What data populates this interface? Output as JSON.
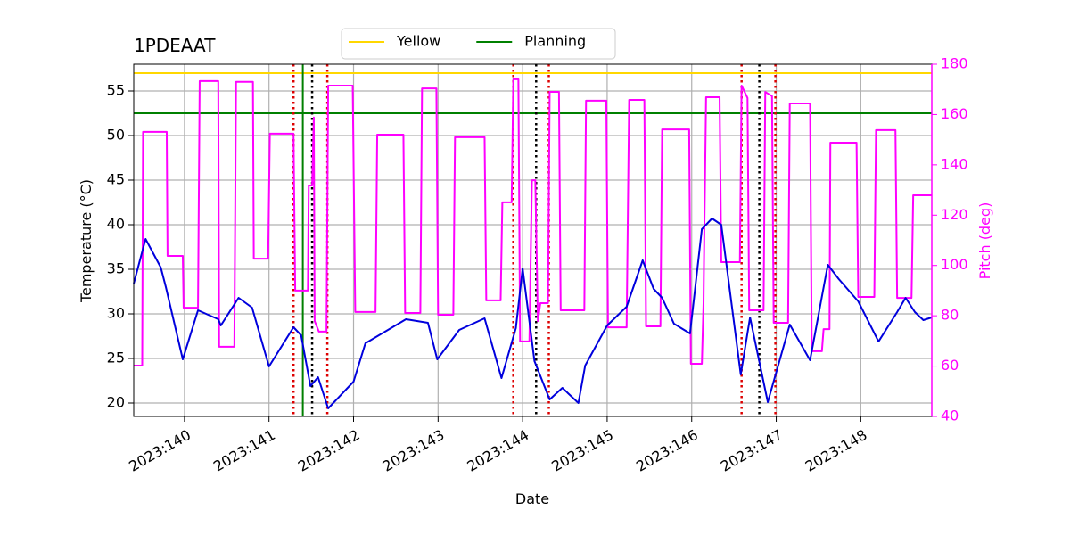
{
  "chart_data": {
    "type": "line",
    "title": "1PDEAAT",
    "xlabel": "Date",
    "ylabel": "Temperature (°C)",
    "y2label": "Pitch (deg)",
    "y2color": "#ff00ff",
    "xlim": [
      139.4,
      148.84
    ],
    "xticks": [
      {
        "value": 140,
        "label": "2023:140"
      },
      {
        "value": 141,
        "label": "2023:141"
      },
      {
        "value": 142,
        "label": "2023:142"
      },
      {
        "value": 143,
        "label": "2023:143"
      },
      {
        "value": 144,
        "label": "2023:144"
      },
      {
        "value": 145,
        "label": "2023:145"
      },
      {
        "value": 146,
        "label": "2023:146"
      },
      {
        "value": 147,
        "label": "2023:147"
      },
      {
        "value": 148,
        "label": "2023:148"
      }
    ],
    "ylim": [
      18.5,
      58
    ],
    "yticks": [
      20,
      25,
      30,
      35,
      40,
      45,
      50,
      55
    ],
    "y2lim": [
      40,
      180
    ],
    "y2ticks": [
      40,
      60,
      80,
      100,
      120,
      140,
      160,
      180
    ],
    "grid": true,
    "legend": "upper center",
    "hlines": [
      {
        "name": "Yellow",
        "color": "#ffd700",
        "value": 57
      },
      {
        "name": "Planning",
        "color": "#008000",
        "value": 52.5
      }
    ],
    "vlines": [
      {
        "color": "#008000",
        "style": "solid",
        "x": [
          141.4
        ]
      },
      {
        "color": "#dd0000",
        "style": "dotted",
        "x": [
          141.29,
          141.69,
          143.89,
          144.31,
          146.59,
          146.99
        ]
      },
      {
        "color": "#000000",
        "style": "dotted",
        "x": [
          141.51,
          144.16,
          146.8
        ]
      }
    ],
    "series": [
      {
        "color": "#0000dd",
        "axis": "y",
        "x": [
          139.4,
          139.54,
          139.72,
          139.78,
          139.98,
          140.16,
          140.4,
          140.43,
          140.64,
          140.8,
          141.0,
          141.29,
          141.38,
          141.49,
          141.58,
          141.7,
          142.0,
          142.14,
          142.62,
          142.88,
          142.99,
          143.25,
          143.55,
          143.75,
          143.92,
          144.0,
          144.14,
          144.32,
          144.47,
          144.66,
          144.74,
          145.0,
          145.23,
          145.42,
          145.55,
          145.65,
          145.79,
          145.98,
          146.12,
          146.24,
          146.35,
          146.58,
          146.69,
          146.9,
          147.16,
          147.4,
          147.61,
          147.74,
          147.97,
          148.21,
          148.43,
          148.53,
          148.64,
          148.74,
          148.84
        ],
        "values": [
          33.4,
          38.4,
          35.2,
          33,
          24.9,
          30.4,
          29.4,
          28.7,
          31.8,
          30.7,
          24.1,
          28.5,
          27.6,
          21.9,
          22.9,
          19.4,
          22.4,
          26.7,
          29.4,
          29.0,
          24.9,
          28.2,
          29.5,
          22.8,
          28.4,
          35.1,
          24.7,
          20.4,
          21.7,
          20.0,
          24.2,
          28.7,
          30.8,
          36.0,
          32.8,
          31.8,
          28.9,
          27.8,
          39.5,
          40.7,
          40.0,
          23.2,
          29.6,
          20.1,
          28.8,
          24.8,
          35.5,
          33.9,
          31.4,
          26.9,
          30.2,
          31.8,
          30.2,
          29.3,
          29.6
        ]
      },
      {
        "color": "#ff00ff",
        "axis": "y2",
        "x": [
          139.4,
          139.5,
          139.51,
          139.79,
          139.8,
          139.98,
          139.99,
          140.16,
          140.18,
          140.4,
          140.41,
          140.59,
          140.61,
          140.81,
          140.82,
          140.99,
          141.01,
          141.29,
          141.31,
          141.46,
          141.47,
          141.51,
          141.53,
          141.54,
          141.59,
          141.68,
          141.7,
          141.99,
          142.02,
          142.26,
          142.28,
          142.59,
          142.61,
          142.79,
          142.81,
          142.98,
          143.0,
          143.18,
          143.2,
          143.55,
          143.57,
          143.74,
          143.76,
          143.87,
          143.89,
          143.95,
          143.97,
          144.08,
          144.11,
          144.15,
          144.18,
          144.21,
          144.3,
          144.32,
          144.43,
          144.45,
          144.73,
          144.75,
          144.99,
          145.01,
          145.23,
          145.26,
          145.44,
          145.46,
          145.63,
          145.65,
          145.97,
          145.99,
          146.12,
          146.14,
          146.15,
          146.17,
          146.33,
          146.35,
          146.57,
          146.59,
          146.66,
          146.68,
          146.85,
          146.87,
          146.95,
          146.97,
          147.14,
          147.16,
          147.4,
          147.42,
          147.54,
          147.56,
          147.63,
          147.64,
          147.95,
          147.97,
          148.16,
          148.18,
          148.41,
          148.43,
          148.6,
          148.62,
          148.84
        ],
        "values": [
          60.2,
          60.2,
          153.1,
          153.1,
          103.8,
          103.8,
          83.2,
          83.2,
          173.3,
          173.3,
          67.7,
          67.7,
          173,
          173,
          102.7,
          102.7,
          152.4,
          152.4,
          90,
          90,
          131.8,
          131.8,
          158.8,
          77.9,
          73.7,
          73.7,
          171.5,
          171.5,
          81.5,
          81.5,
          152,
          152,
          81.1,
          81.1,
          170.4,
          170.4,
          80.4,
          80.4,
          151,
          151,
          86.1,
          86.1,
          125.1,
          125.1,
          174,
          174,
          69.8,
          69.8,
          133.9,
          133.9,
          77.9,
          85,
          85,
          169,
          169,
          82.2,
          82.2,
          165.5,
          165.5,
          75.4,
          75.4,
          165.8,
          165.8,
          75.8,
          75.8,
          154.1,
          154.1,
          60.9,
          60.9,
          85,
          115.2,
          166.9,
          166.9,
          101.3,
          101.3,
          171.5,
          166.6,
          82.2,
          82.2,
          169,
          167.3,
          77.2,
          77.2,
          164.4,
          164.4,
          65.9,
          65.9,
          74.7,
          74.7,
          148.8,
          148.8,
          87.5,
          87.5,
          153.8,
          153.8,
          87.1,
          87.1,
          127.9,
          127.9
        ]
      }
    ]
  }
}
